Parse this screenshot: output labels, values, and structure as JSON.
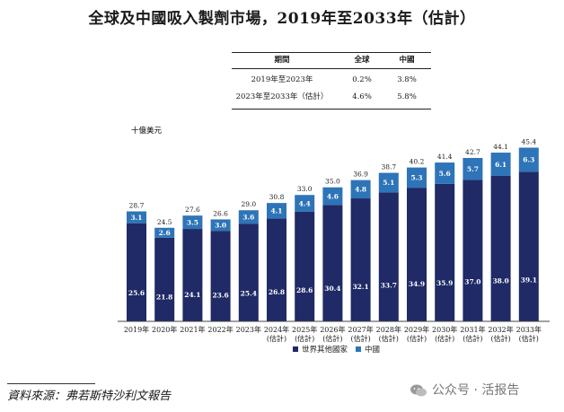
{
  "title": "全球及中國吸入製劑市場，2019年至2033年（估計）",
  "cagr_table": {
    "headers": [
      "期間",
      "全球",
      "中國"
    ],
    "rows": [
      [
        "2019年至2023年",
        "0.2%",
        "3.8%"
      ],
      [
        "2023年至2033年（估計）",
        "4.6%",
        "5.8%"
      ]
    ]
  },
  "chart_data": {
    "type": "bar",
    "stacked": true,
    "unit_label": "十億美元",
    "categories": [
      "2019年",
      "2020年",
      "2021年",
      "2022年",
      "2023年",
      "2024年\n(估計)",
      "2025年\n(估計)",
      "2026年\n(估計)",
      "2027年\n(估計)",
      "2028年\n(估計)",
      "2029年\n(估計)",
      "2030年\n(估計)",
      "2031年\n(估計)",
      "2032年\n(估計)",
      "2033年\n(估計)"
    ],
    "series": [
      {
        "name": "世界其他國家",
        "color": "#1f2a66",
        "values": [
          25.6,
          21.8,
          24.1,
          23.6,
          25.4,
          26.8,
          28.6,
          30.4,
          32.1,
          33.7,
          34.9,
          35.9,
          37.0,
          38.0,
          39.1
        ]
      },
      {
        "name": "中國",
        "color": "#2e74b8",
        "values": [
          3.1,
          2.6,
          3.5,
          3.0,
          3.6,
          4.1,
          4.4,
          4.6,
          4.8,
          5.1,
          5.3,
          5.6,
          5.7,
          6.1,
          6.3
        ]
      }
    ],
    "totals": [
      28.7,
      24.5,
      27.6,
      26.6,
      29.0,
      30.8,
      33.0,
      35.0,
      36.9,
      38.7,
      40.2,
      41.4,
      42.7,
      44.1,
      45.4
    ],
    "ylim": [
      0,
      45.4
    ],
    "grid": false,
    "legend_position": "bottom-center"
  },
  "source": "資料來源：弗若斯特沙利文報告",
  "watermark": {
    "text": "公众号 · 活报告",
    "icon": "wechat-icon"
  }
}
